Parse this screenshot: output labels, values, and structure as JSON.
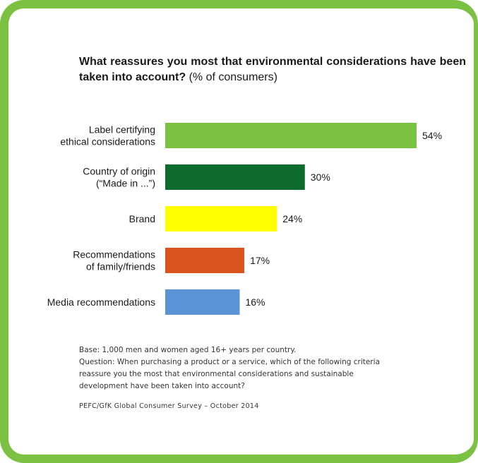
{
  "chart_data": {
    "type": "bar",
    "orientation": "horizontal",
    "title": "What reassures you most that environmental considerations have been taken into account?",
    "title_suffix": "(% of consumers)",
    "categories": [
      [
        "Label certifying",
        "ethical considerations"
      ],
      [
        "Country of origin",
        "(“Made in ...”)"
      ],
      [
        "Brand"
      ],
      [
        "Recommendations",
        "of family/friends"
      ],
      [
        "Media recommendations"
      ]
    ],
    "values": [
      54,
      30,
      24,
      17,
      16
    ],
    "value_labels": [
      "54%",
      "30%",
      "24%",
      "17%",
      "16%"
    ],
    "colors": [
      "#7cc242",
      "#0d6b2e",
      "#ffff00",
      "#d9541e",
      "#5b93d6"
    ],
    "xlim": [
      0,
      54
    ],
    "grid": false,
    "legend": "none"
  },
  "footnote": {
    "base": "Base: 1,000 men and women aged 16+ years per country.",
    "question": "Question: When purchasing a product or a service, which of the following criteria reassure you the most that environmental considerations and sustainable development have been taken into account?"
  },
  "source": "PEFC/GfK Global Consumer Survey – October 2014",
  "frame_color": "#7cc242"
}
